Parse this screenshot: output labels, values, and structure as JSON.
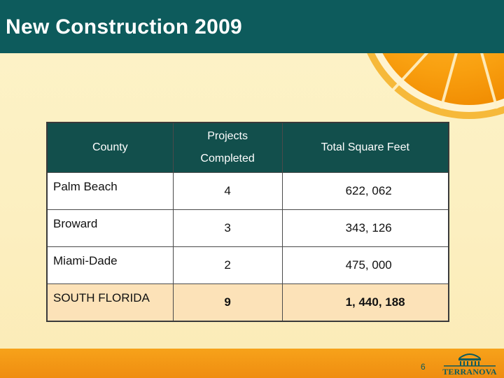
{
  "slide": {
    "title": "New Construction 2009",
    "page_number": "6",
    "logo_text": "TERRANOVA"
  },
  "table": {
    "headers": [
      "County",
      "Projects Completed",
      "Total Square Feet"
    ],
    "header_projects_line1": "Projects",
    "header_projects_line2": "Completed",
    "rows": [
      {
        "county": "Palm Beach",
        "projects": "4",
        "sqft": "622, 062"
      },
      {
        "county": "Broward",
        "projects": "3",
        "sqft": "343, 126"
      },
      {
        "county": "Miami-Dade",
        "projects": "2",
        "sqft": "475, 000"
      }
    ],
    "total": {
      "county": "SOUTH FLORIDA",
      "projects": "9",
      "sqft": "1, 440, 188"
    }
  },
  "colors": {
    "title_bar": "#0d5b5c",
    "header_bg": "#124f4c",
    "total_row_bg": "#fce2b8",
    "bottom_bar": "#f7a21a",
    "background": "#fdf1c3"
  }
}
